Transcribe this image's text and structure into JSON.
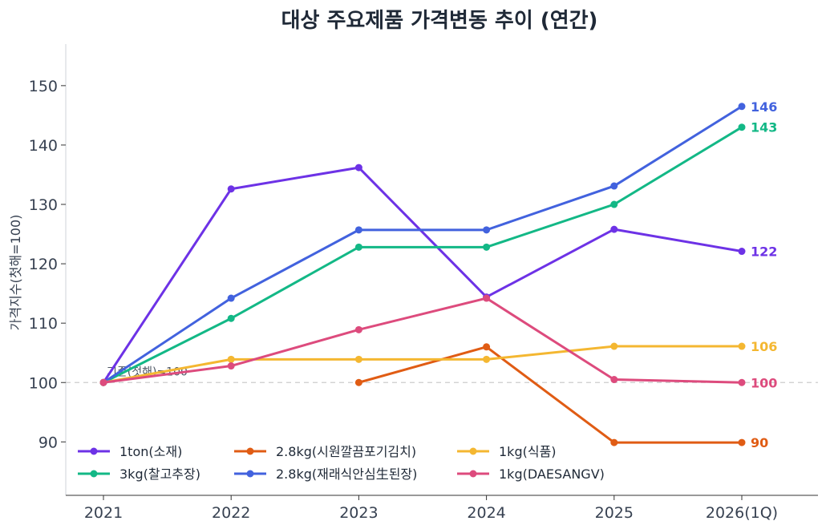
{
  "chart_data": {
    "type": "line",
    "title": "대상 주요제품 가격변동 추이 (연간)",
    "ylabel": "가격지수(첫해=100)",
    "xlabel": "",
    "categories": [
      "2021",
      "2022",
      "2023",
      "2024",
      "2025",
      "2026(1Q)"
    ],
    "yticks": [
      90,
      100,
      110,
      120,
      130,
      140,
      150
    ],
    "ylim": [
      81,
      157
    ],
    "grid": false,
    "reference_line": {
      "value": 100,
      "label": "기준(첫해)=100"
    },
    "legend_position": "bottom-left",
    "series": [
      {
        "name": "1ton(소재)",
        "color": "#6d32e6",
        "values": [
          100,
          132.6,
          136.2,
          114.4,
          125.8,
          122.1
        ],
        "end_label": "122"
      },
      {
        "name": "3kg(찰고추장)",
        "color": "#13b886",
        "values": [
          100,
          110.8,
          122.8,
          122.8,
          130.0,
          143.0
        ],
        "end_label": "143"
      },
      {
        "name": "2.8kg(시원깔끔포기김치)",
        "color": "#e05c14",
        "values": [
          null,
          null,
          100,
          106.0,
          89.9,
          89.9
        ],
        "end_label": "90"
      },
      {
        "name": "2.8kg(재래식안심生된장)",
        "color": "#4262de",
        "values": [
          100,
          114.2,
          125.7,
          125.7,
          133.1,
          146.5
        ],
        "end_label": "146"
      },
      {
        "name": "1kg(식품)",
        "color": "#f4b731",
        "values": [
          100,
          103.9,
          103.9,
          103.9,
          106.1,
          106.1
        ],
        "end_label": "106"
      },
      {
        "name": "1kg(DAESANGV)",
        "color": "#dd4b7d",
        "values": [
          100,
          102.8,
          108.9,
          114.2,
          100.5,
          100.0
        ],
        "end_label": "100"
      }
    ]
  }
}
